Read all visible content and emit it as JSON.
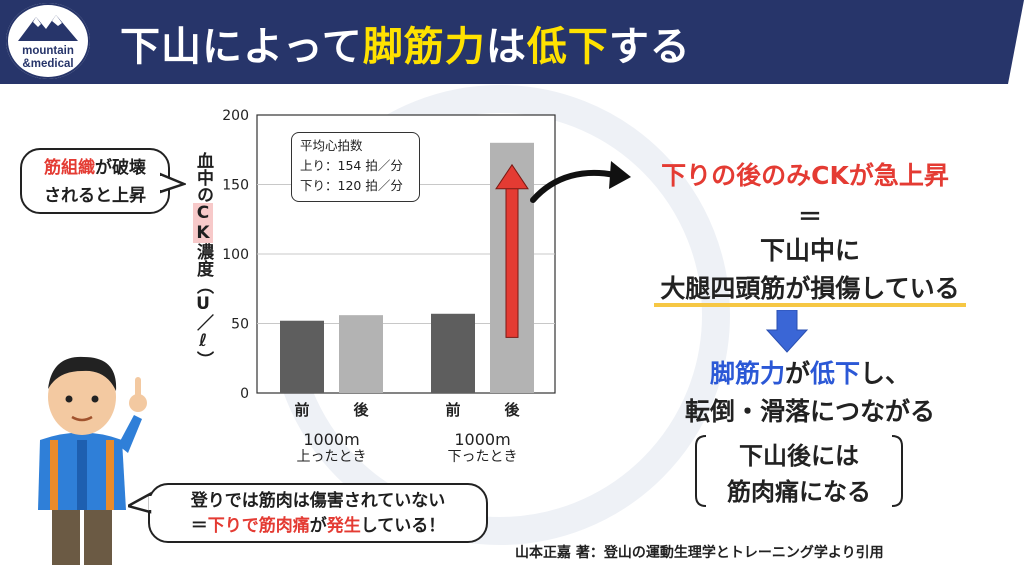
{
  "header": {
    "title_parts": [
      "下山によって",
      "脚筋力",
      "は",
      "低下",
      "する"
    ],
    "logo_line1": "mountain",
    "logo_line2": "&medical"
  },
  "bubbles": {
    "left_parts": [
      "筋組織",
      "が破壊",
      "されると上昇"
    ],
    "bottom_line1": "登りでは筋肉は傷害されていない",
    "bottom_line2_parts": [
      "＝",
      "下りで筋肉痛",
      "が",
      "発生",
      "している！"
    ]
  },
  "chart_data": {
    "type": "bar",
    "ylabel_parts": [
      "血中の",
      "CK",
      "濃度（U／ℓ）"
    ],
    "ylim": [
      0,
      200
    ],
    "yticks": [
      "0",
      "50",
      "100",
      "150",
      "200"
    ],
    "grid": true,
    "categories": [
      "前",
      "後",
      "前",
      "後"
    ],
    "groups": [
      "1000m\n上ったとき",
      "1000m\n下ったとき"
    ],
    "group_labels": [
      [
        "1000m",
        "上ったとき"
      ],
      [
        "1000m",
        "下ったとき"
      ]
    ],
    "values": [
      52,
      56,
      57,
      180
    ],
    "bar_colors": [
      "#5e5e5e",
      "#b3b3b3",
      "#5e5e5e",
      "#b3b3b3"
    ],
    "annotation": {
      "title": "平均心拍数",
      "line1": "上り：154 拍／分",
      "line2": "下り：120 拍／分"
    },
    "arrow_color": "#e43b33"
  },
  "right_panel": {
    "line1": "下りの後のみCKが急上昇",
    "equals": "＝",
    "line2": "下山中に",
    "line3": "大腿四頭筋が損傷している",
    "line4_parts": [
      "脚筋力",
      "が",
      "低下",
      "し、"
    ],
    "line5": "転倒・滑落につながる",
    "brace_line1": "下山後には",
    "brace_line2": "筋肉痛になる"
  },
  "citation": "山本正嘉 著：登山の運動生理学とトレーニング学より引用",
  "colors": {
    "header_bg": "#27356a",
    "title_highlight": "#ffe200",
    "accent_red": "#e43b33",
    "accent_blue": "#2b58d6",
    "underline": "#f6c744"
  }
}
